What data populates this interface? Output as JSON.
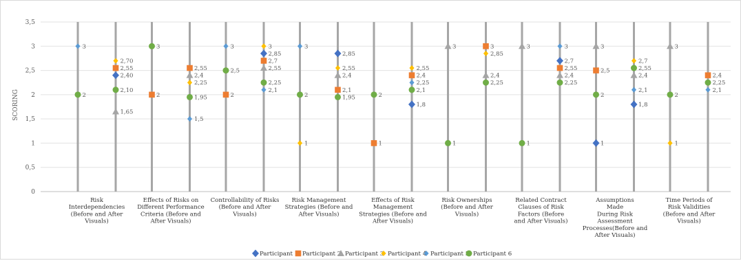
{
  "chart_data": {
    "type": "scatter",
    "title": "",
    "xlabel": "",
    "ylabel": "SCORING",
    "ylim": [
      0,
      3.5
    ],
    "yticks": [
      "0",
      "0,5",
      "1",
      "1,5",
      "2",
      "2,5",
      "3",
      "3,5"
    ],
    "grid": "horizontal",
    "legend_position": "bottom",
    "categories": [
      [
        "Risk",
        "Interdependencies",
        "(Before and After",
        "Visuals)"
      ],
      [
        "Effects of Risks on",
        "Different Performance",
        "Criteria (Before and",
        "After Visuals)"
      ],
      [
        "Controllability of Risks",
        "(Before and After",
        "Visuals)"
      ],
      [
        "Risk Management",
        "Strategies (Before and",
        "After Visuals)"
      ],
      [
        "Effects of Risk",
        "Management",
        "Strategies (Before and",
        "After Visuals)"
      ],
      [
        "Risk Ownerships",
        "(Before and After",
        "Visuals)"
      ],
      [
        "Related Contract",
        "Clauses of Risk",
        "Factors (Before",
        "and After Visuals)"
      ],
      [
        "Assumptions",
        "Made",
        "During Risk",
        "Assessment",
        "Processes(Before and",
        "After Visuals)"
      ],
      [
        "Time Periods of",
        "Risk Validities",
        "(Before and After",
        "Visuals)"
      ]
    ],
    "series": [
      {
        "name": "Participant 1",
        "color": "#4472C4",
        "marker": "diamond"
      },
      {
        "name": "Participant 2",
        "color": "#ED7D31",
        "marker": "square"
      },
      {
        "name": "Participant 3",
        "color": "#A5A5A5",
        "marker": "triangle"
      },
      {
        "name": "Participant 4",
        "color": "#FFC000",
        "marker": "small-diamond"
      },
      {
        "name": "Participant 5",
        "color": "#5B9BD5",
        "marker": "small-diamond"
      },
      {
        "name": "Participant 6",
        "color": "#70AD47",
        "marker": "circle"
      }
    ],
    "points": [
      {
        "cat": 0,
        "side": "before",
        "series": 4,
        "y": 3,
        "label": "3"
      },
      {
        "cat": 0,
        "side": "before",
        "series": 5,
        "y": 2,
        "label": "2"
      },
      {
        "cat": 0,
        "side": "after",
        "series": 3,
        "y": 2.7,
        "label": "2,70"
      },
      {
        "cat": 0,
        "side": "after",
        "series": 1,
        "y": 2.55,
        "label": "2,55"
      },
      {
        "cat": 0,
        "side": "after",
        "series": 0,
        "y": 2.4,
        "label": "2,40"
      },
      {
        "cat": 0,
        "side": "after",
        "series": 5,
        "y": 2.1,
        "label": "2,10"
      },
      {
        "cat": 0,
        "side": "after",
        "series": 2,
        "y": 1.65,
        "label": "1,65"
      },
      {
        "cat": 1,
        "side": "before",
        "series": 5,
        "y": 3,
        "label": "3"
      },
      {
        "cat": 1,
        "side": "before",
        "series": 1,
        "y": 2,
        "label": "2"
      },
      {
        "cat": 1,
        "side": "after",
        "series": 1,
        "y": 2.55,
        "label": "2,55"
      },
      {
        "cat": 1,
        "side": "after",
        "series": 2,
        "y": 2.4,
        "label": "2,4"
      },
      {
        "cat": 1,
        "side": "after",
        "series": 3,
        "y": 2.25,
        "label": "2,25"
      },
      {
        "cat": 1,
        "side": "after",
        "series": 5,
        "y": 1.95,
        "label": "1,95"
      },
      {
        "cat": 1,
        "side": "after",
        "series": 4,
        "y": 1.5,
        "label": "1,5"
      },
      {
        "cat": 2,
        "side": "before",
        "series": 4,
        "y": 3,
        "label": "3"
      },
      {
        "cat": 2,
        "side": "before",
        "series": 5,
        "y": 2.5,
        "label": "2,5"
      },
      {
        "cat": 2,
        "side": "before",
        "series": 1,
        "y": 2,
        "label": "2"
      },
      {
        "cat": 2,
        "side": "after",
        "series": 3,
        "y": 3,
        "label": "3"
      },
      {
        "cat": 2,
        "side": "after",
        "series": 0,
        "y": 2.85,
        "label": "2,85"
      },
      {
        "cat": 2,
        "side": "after",
        "series": 1,
        "y": 2.7,
        "label": "2,7"
      },
      {
        "cat": 2,
        "side": "after",
        "series": 2,
        "y": 2.55,
        "label": "2,55"
      },
      {
        "cat": 2,
        "side": "after",
        "series": 5,
        "y": 2.25,
        "label": "2,25"
      },
      {
        "cat": 2,
        "side": "after",
        "series": 4,
        "y": 2.1,
        "label": "2,1"
      },
      {
        "cat": 3,
        "side": "before",
        "series": 4,
        "y": 3,
        "label": "3"
      },
      {
        "cat": 3,
        "side": "before",
        "series": 5,
        "y": 2,
        "label": "2"
      },
      {
        "cat": 3,
        "side": "before",
        "series": 3,
        "y": 1,
        "label": "1"
      },
      {
        "cat": 3,
        "side": "after",
        "series": 0,
        "y": 2.85,
        "label": "2,85"
      },
      {
        "cat": 3,
        "side": "after",
        "series": 3,
        "y": 2.55,
        "label": "2,55"
      },
      {
        "cat": 3,
        "side": "after",
        "series": 2,
        "y": 2.4,
        "label": "2,4"
      },
      {
        "cat": 3,
        "side": "after",
        "series": 1,
        "y": 2.1,
        "label": "2,1"
      },
      {
        "cat": 3,
        "side": "after",
        "series": 5,
        "y": 1.95,
        "label": "1,95"
      },
      {
        "cat": 4,
        "side": "before",
        "series": 5,
        "y": 2,
        "label": "2"
      },
      {
        "cat": 4,
        "side": "before",
        "series": 1,
        "y": 1,
        "label": "1"
      },
      {
        "cat": 4,
        "side": "after",
        "series": 3,
        "y": 2.55,
        "label": "2,55"
      },
      {
        "cat": 4,
        "side": "after",
        "series": 1,
        "y": 2.4,
        "label": "2,4"
      },
      {
        "cat": 4,
        "side": "after",
        "series": 4,
        "y": 2.25,
        "label": "2,25"
      },
      {
        "cat": 4,
        "side": "after",
        "series": 5,
        "y": 2.1,
        "label": "2,1"
      },
      {
        "cat": 4,
        "side": "after",
        "series": 0,
        "y": 1.8,
        "label": "1,8"
      },
      {
        "cat": 5,
        "side": "before",
        "series": 2,
        "y": 3,
        "label": "3"
      },
      {
        "cat": 5,
        "side": "before",
        "series": 5,
        "y": 1,
        "label": "1"
      },
      {
        "cat": 5,
        "side": "after",
        "series": 1,
        "y": 3,
        "label": "3"
      },
      {
        "cat": 5,
        "side": "after",
        "series": 3,
        "y": 2.85,
        "label": "2,85"
      },
      {
        "cat": 5,
        "side": "after",
        "series": 2,
        "y": 2.4,
        "label": "2,4"
      },
      {
        "cat": 5,
        "side": "after",
        "series": 5,
        "y": 2.25,
        "label": "2,25"
      },
      {
        "cat": 6,
        "side": "before",
        "series": 2,
        "y": 3,
        "label": "3"
      },
      {
        "cat": 6,
        "side": "before",
        "series": 5,
        "y": 1,
        "label": "1"
      },
      {
        "cat": 6,
        "side": "after",
        "series": 4,
        "y": 3,
        "label": "3"
      },
      {
        "cat": 6,
        "side": "after",
        "series": 0,
        "y": 2.7,
        "label": "2,7"
      },
      {
        "cat": 6,
        "side": "after",
        "series": 1,
        "y": 2.55,
        "label": "2,55"
      },
      {
        "cat": 6,
        "side": "after",
        "series": 2,
        "y": 2.4,
        "label": "2,4"
      },
      {
        "cat": 6,
        "side": "after",
        "series": 5,
        "y": 2.25,
        "label": "2,25"
      },
      {
        "cat": 7,
        "side": "before",
        "series": 2,
        "y": 3,
        "label": "3"
      },
      {
        "cat": 7,
        "side": "before",
        "series": 1,
        "y": 2.5,
        "label": "2,5"
      },
      {
        "cat": 7,
        "side": "before",
        "series": 5,
        "y": 2,
        "label": "2"
      },
      {
        "cat": 7,
        "side": "before",
        "series": 0,
        "y": 1,
        "label": "1"
      },
      {
        "cat": 7,
        "side": "after",
        "series": 3,
        "y": 2.7,
        "label": "2,7"
      },
      {
        "cat": 7,
        "side": "after",
        "series": 5,
        "y": 2.55,
        "label": "2,55"
      },
      {
        "cat": 7,
        "side": "after",
        "series": 2,
        "y": 2.4,
        "label": "2,4"
      },
      {
        "cat": 7,
        "side": "after",
        "series": 4,
        "y": 2.1,
        "label": "2,1"
      },
      {
        "cat": 7,
        "side": "after",
        "series": 0,
        "y": 1.8,
        "label": "1,8"
      },
      {
        "cat": 8,
        "side": "before",
        "series": 2,
        "y": 3,
        "label": "3"
      },
      {
        "cat": 8,
        "side": "before",
        "series": 5,
        "y": 2,
        "label": "2"
      },
      {
        "cat": 8,
        "side": "before",
        "series": 3,
        "y": 1,
        "label": "1"
      },
      {
        "cat": 8,
        "side": "after",
        "series": 1,
        "y": 2.4,
        "label": "2,4"
      },
      {
        "cat": 8,
        "side": "after",
        "series": 5,
        "y": 2.25,
        "label": "2,25"
      },
      {
        "cat": 8,
        "side": "after",
        "series": 4,
        "y": 2.1,
        "label": "2,1"
      }
    ]
  }
}
